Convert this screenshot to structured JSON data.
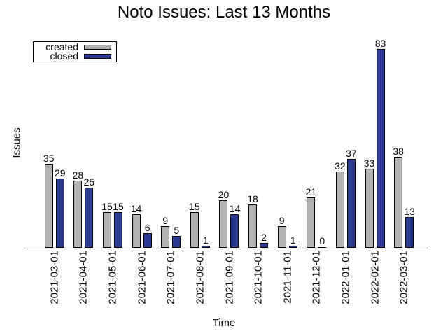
{
  "chart_data": {
    "type": "bar",
    "title": "Noto Issues: Last 13 Months",
    "xlabel": "Time",
    "ylabel": "Issues",
    "categories": [
      "2021-03-01",
      "2021-04-01",
      "2021-05-01",
      "2021-06-01",
      "2021-07-01",
      "2021-08-01",
      "2021-09-01",
      "2021-10-01",
      "2021-11-01",
      "2021-12-01",
      "2022-01-01",
      "2022-02-01",
      "2022-03-01"
    ],
    "series": [
      {
        "name": "created",
        "color": "#b3b3b3",
        "values": [
          35,
          28,
          15,
          14,
          9,
          15,
          20,
          18,
          9,
          21,
          32,
          33,
          38
        ]
      },
      {
        "name": "closed",
        "color": "#2b3a90",
        "values": [
          29,
          25,
          15,
          6,
          5,
          1,
          14,
          2,
          1,
          0,
          37,
          83,
          13
        ]
      }
    ],
    "value_labels": true,
    "legend_position": "top-left",
    "ylim": [
      0,
      90
    ],
    "grid": false,
    "y_ticks": "none",
    "x_tick_rotation": 90
  }
}
